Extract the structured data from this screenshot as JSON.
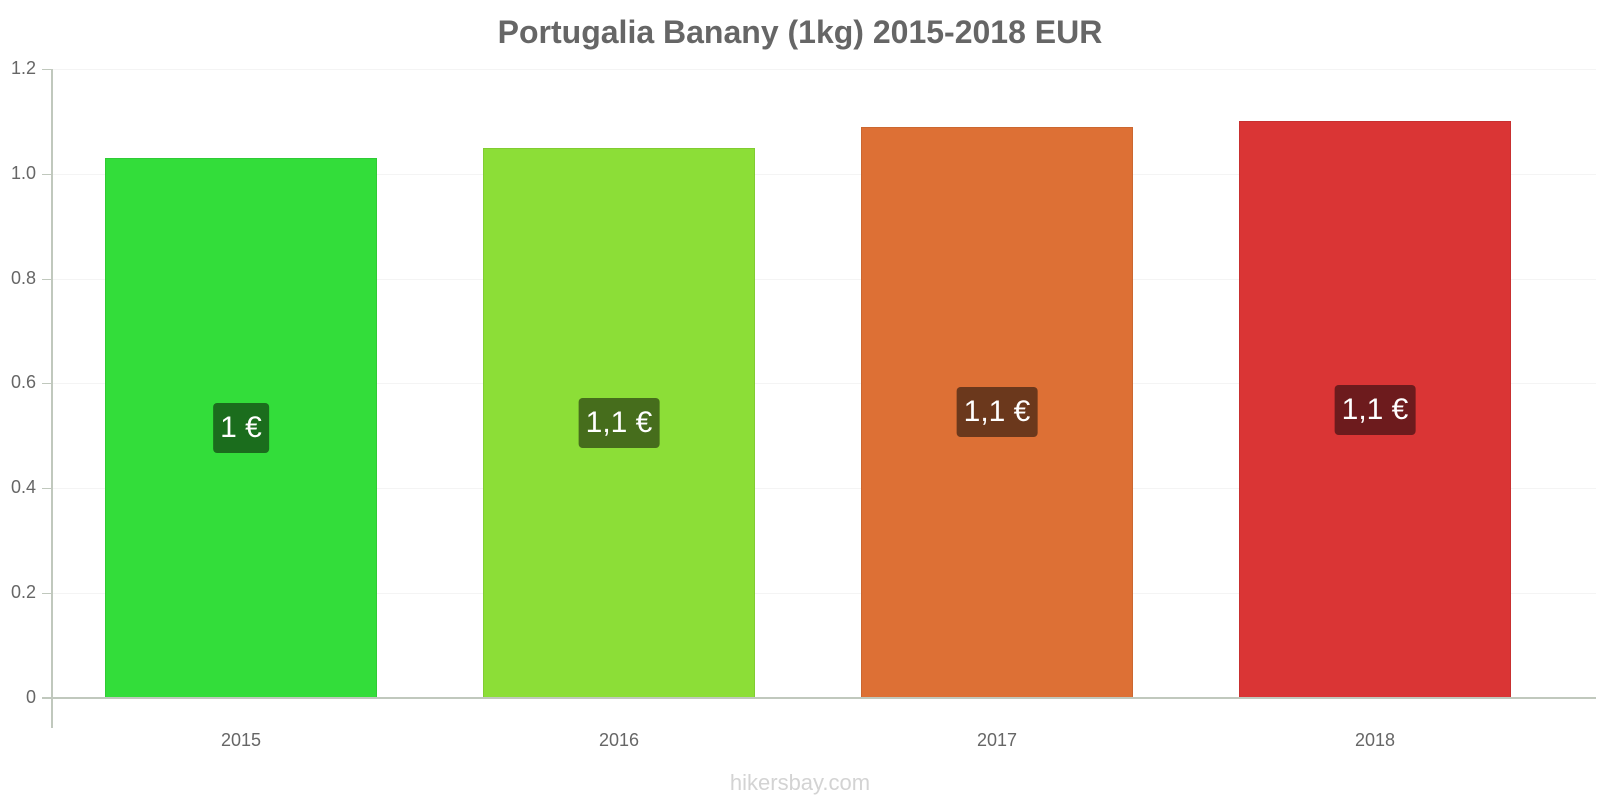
{
  "chart_data": {
    "type": "bar",
    "title": "Portugalia Banany (1kg) 2015-2018 EUR",
    "xlabel": "",
    "ylabel": "",
    "categories": [
      "2015",
      "2016",
      "2017",
      "2018"
    ],
    "values": [
      1.03,
      1.05,
      1.09,
      1.1
    ],
    "data_labels": [
      "1 €",
      "1,1 €",
      "1,1 €",
      "1,1 €"
    ],
    "bar_colors": [
      "#33dd3a",
      "#8cde37",
      "#dd7035",
      "#da3535"
    ],
    "label_bg_colors": [
      "#1b6d1d",
      "#466d1c",
      "#6b381c",
      "#6d1b1d"
    ],
    "ylim": [
      0,
      1.2
    ],
    "yticks": [
      0,
      0.2,
      0.4,
      0.6,
      0.8,
      1.0,
      1.2
    ],
    "ytick_labels": [
      "0",
      "0.2",
      "0.4",
      "0.6",
      "0.8",
      "1.0",
      "1.2"
    ],
    "grid": true,
    "legend": null
  },
  "watermark": "hikersbay.com"
}
